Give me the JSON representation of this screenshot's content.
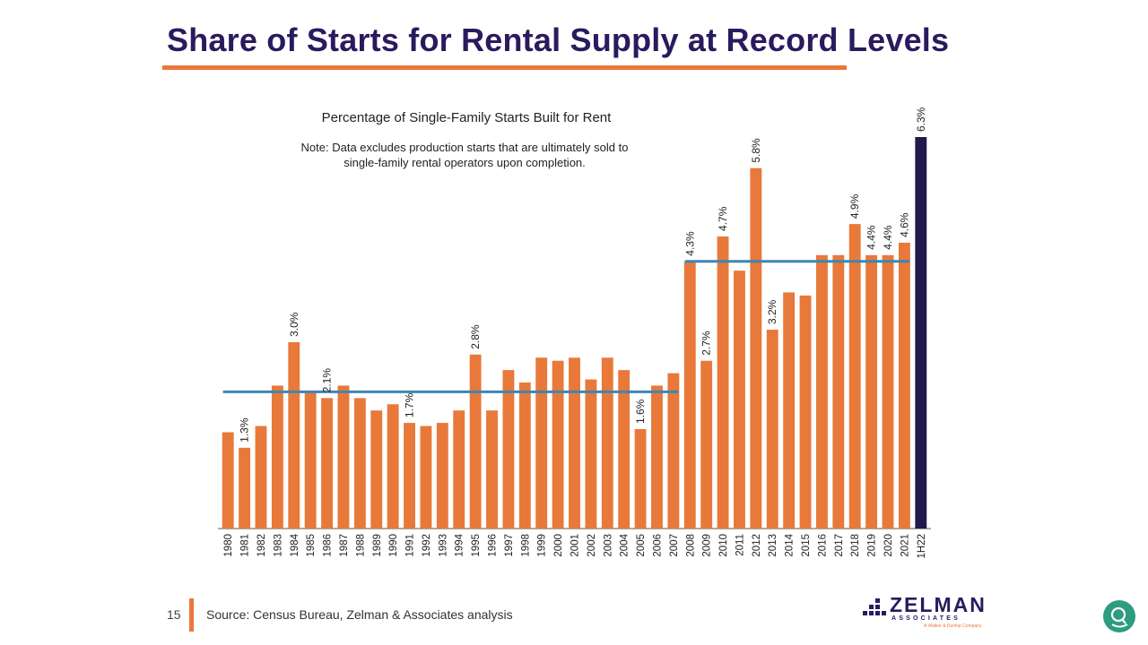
{
  "slide": {
    "title": "Share of Starts for Rental Supply at Record Levels",
    "page_number": "15",
    "source": "Source: Census Bureau, Zelman & Associates analysis"
  },
  "logo": {
    "name": "ZELMAN",
    "sub": "ASSOCIATES",
    "tagline": "A Walker & Dunlop Company"
  },
  "colors": {
    "bar": "#e8793a",
    "highlight_bar": "#221a4a",
    "avg_line": "#3d86b5",
    "title": "#2a1a5e",
    "accent": "#e8793a"
  },
  "chart_data": {
    "type": "bar",
    "title": "Percentage of Single-Family Starts Built for Rent",
    "note_lines": [
      "Note: Data excludes production starts that are ultimately sold to",
      "single-family rental operators upon completion."
    ],
    "categories": [
      "1980",
      "1981",
      "1982",
      "1983",
      "1984",
      "1985",
      "1986",
      "1987",
      "1988",
      "1989",
      "1990",
      "1991",
      "1992",
      "1993",
      "1994",
      "1995",
      "1996",
      "1997",
      "1998",
      "1999",
      "2000",
      "2001",
      "2002",
      "2003",
      "2004",
      "2005",
      "2006",
      "2007",
      "2008",
      "2009",
      "2010",
      "2011",
      "2012",
      "2013",
      "2014",
      "2015",
      "2016",
      "2017",
      "2018",
      "2019",
      "2020",
      "2021",
      "1H22"
    ],
    "values": [
      1.55,
      1.3,
      1.65,
      2.3,
      3.0,
      2.2,
      2.1,
      2.3,
      2.1,
      1.9,
      2.0,
      1.7,
      1.65,
      1.7,
      1.9,
      2.8,
      1.9,
      2.55,
      2.35,
      2.75,
      2.7,
      2.75,
      2.4,
      2.75,
      2.55,
      1.6,
      2.3,
      2.5,
      4.3,
      2.7,
      4.7,
      4.15,
      5.8,
      3.2,
      3.8,
      3.75,
      4.4,
      4.4,
      4.9,
      4.4,
      4.4,
      4.6,
      6.3
    ],
    "data_labels": {
      "1981": "1.3%",
      "1984": "3.0%",
      "1986": "2.1%",
      "1991": "1.7%",
      "1995": "2.8%",
      "2005": "1.6%",
      "2008": "4.3%",
      "2009": "2.7%",
      "2010": "4.7%",
      "2012": "5.8%",
      "2013": "3.2%",
      "2018": "4.9%",
      "2019": "4.4%",
      "2020": "4.4%",
      "2021": "4.6%",
      "1H22": "6.3%"
    },
    "highlight_category": "1H22",
    "averages": [
      {
        "from": "1980",
        "to": "2007",
        "value": 2.2
      },
      {
        "from": "2008",
        "to": "2021",
        "value": 4.3
      }
    ],
    "ylim": [
      0,
      6.5
    ],
    "grid": false,
    "legend": "none",
    "xlabel": "",
    "ylabel": ""
  }
}
